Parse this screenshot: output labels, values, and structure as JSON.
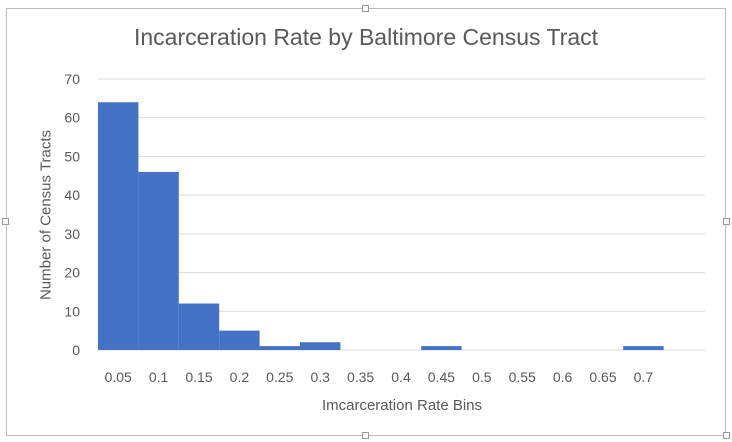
{
  "chart_data": {
    "type": "bar",
    "title": "Incarceration Rate by Baltimore Census Tract",
    "xlabel": "Imcarceration Rate Bins",
    "ylabel": "Number of Census Tracts",
    "categories": [
      "0.05",
      "0.1",
      "0.15",
      "0.2",
      "0.25",
      "0.3",
      "0.35",
      "0.4",
      "0.45",
      "0.5",
      "0.55",
      "0.6",
      "0.65",
      "0.7"
    ],
    "values": [
      64,
      46,
      12,
      5,
      1,
      2,
      0,
      0,
      1,
      0,
      0,
      0,
      0,
      1
    ],
    "ylim": [
      0,
      70
    ],
    "yticks": [
      "0",
      "10",
      "20",
      "30",
      "40",
      "50",
      "60",
      "70"
    ],
    "grid": true,
    "legend": "none",
    "colors": {
      "bar": "#4472c4",
      "grid": "#d9d9d9",
      "text": "#595959"
    }
  }
}
